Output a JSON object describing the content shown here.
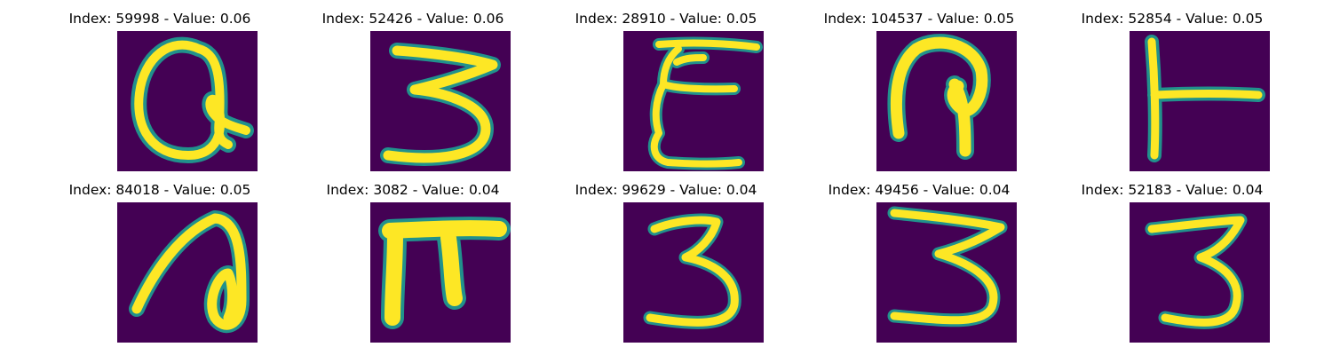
{
  "figure": {
    "panels": [
      {
        "title": "Index: 59998 - Value: 0.06",
        "glyph": "a-like"
      },
      {
        "title": "Index: 52426 - Value: 0.06",
        "glyph": "3-like"
      },
      {
        "title": "Index: 28910 - Value: 0.05",
        "glyph": "E-like"
      },
      {
        "title": "Index: 104537 - Value: 0.05",
        "glyph": "hook-like"
      },
      {
        "title": "Index: 52854 - Value: 0.05",
        "glyph": "T-like"
      },
      {
        "title": "Index: 84018 - Value: 0.05",
        "glyph": "loop-like"
      },
      {
        "title": "Index: 3082 - Value: 0.04",
        "glyph": "pi-like"
      },
      {
        "title": "Index: 99629 - Value: 0.04",
        "glyph": "3-like"
      },
      {
        "title": "Index: 49456 - Value: 0.04",
        "glyph": "3-like"
      },
      {
        "title": "Index: 52183 - Value: 0.04",
        "glyph": "3-like"
      }
    ],
    "colors": {
      "background": "#440154",
      "stroke_core": "#fde725",
      "stroke_edge": "#21918c"
    }
  }
}
